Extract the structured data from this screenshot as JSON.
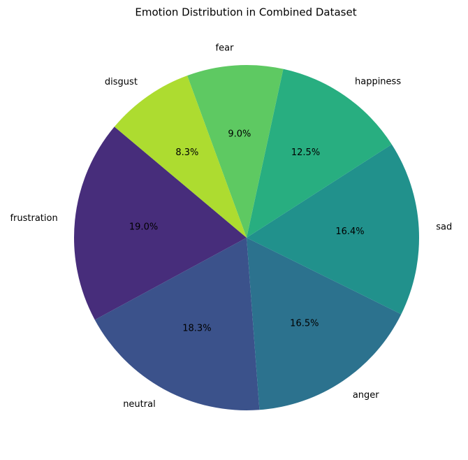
{
  "chart_data": {
    "type": "pie",
    "title": "Emotion Distribution in Combined Dataset",
    "categories": [
      "frustration",
      "neutral",
      "anger",
      "sad",
      "happiness",
      "fear",
      "disgust"
    ],
    "values": [
      19.0,
      18.3,
      16.5,
      16.4,
      12.5,
      9.0,
      8.3
    ],
    "value_labels": [
      "19.0%",
      "18.3%",
      "16.5%",
      "16.4%",
      "12.5%",
      "9.0%",
      "8.3%"
    ],
    "colors": [
      "#472d7b",
      "#3b528b",
      "#2c728e",
      "#21918c",
      "#28ae80",
      "#5ec962",
      "#addc30"
    ]
  }
}
